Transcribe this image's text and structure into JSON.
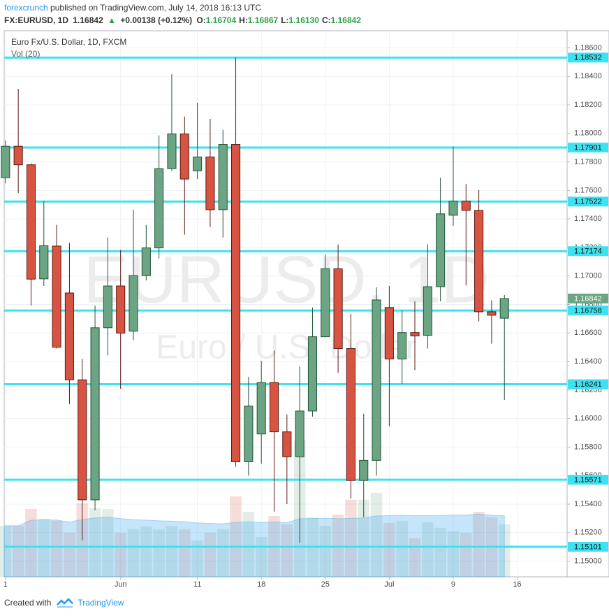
{
  "header": {
    "brand": "forexcrunch",
    "published": "published on TradingView.com, July 14, 2018 16:13 UTC",
    "symbol": "FX:EURUSD, 1D",
    "price": "1.16842",
    "change": "+0.00138 (+0.12%)",
    "ohlc": [
      {
        "label": "O:",
        "value": "1.16704"
      },
      {
        "label": "H:",
        "value": "1.16867"
      },
      {
        "label": "L:",
        "value": "1.16130"
      },
      {
        "label": "C:",
        "value": "1.16842"
      }
    ]
  },
  "footer": {
    "created": "Created with",
    "brand": "TradingView"
  },
  "chart_data": {
    "type": "candlestick",
    "title": "Euro Fx/U.S. Dollar, 1D, FXCM",
    "watermark": "EURUSD, 1D",
    "watermark_subtitle": "Euro / U.S. Dollar",
    "up_color": "#6ba583",
    "down_color": "#d75442",
    "level_color": "#3ce2f0",
    "grid": true,
    "xlim": [
      -0.1,
      43.9
    ],
    "xticks": [
      {
        "value": 0,
        "label": "1"
      },
      {
        "value": 9,
        "label": "Jun"
      },
      {
        "value": 15,
        "label": "11"
      },
      {
        "value": 20,
        "label": "18"
      },
      {
        "value": 25,
        "label": "25"
      },
      {
        "value": 30,
        "label": "Jul"
      },
      {
        "value": 35,
        "label": "9"
      },
      {
        "value": 40,
        "label": "16"
      }
    ],
    "ylim": [
      1.1489,
      1.1872
    ],
    "yticks": [
      {
        "value": 1.15,
        "label": "1.15000"
      },
      {
        "value": 1.152,
        "label": "1.15200"
      },
      {
        "value": 1.154,
        "label": "1.15400"
      },
      {
        "value": 1.156,
        "label": "1.15600"
      },
      {
        "value": 1.158,
        "label": "1.15800"
      },
      {
        "value": 1.16,
        "label": "1.16000"
      },
      {
        "value": 1.162,
        "label": "1.16200"
      },
      {
        "value": 1.164,
        "label": "1.16400"
      },
      {
        "value": 1.166,
        "label": "1.16600"
      },
      {
        "value": 1.168,
        "label": "1.16800"
      },
      {
        "value": 1.17,
        "label": "1.17000"
      },
      {
        "value": 1.172,
        "label": "1.17200"
      },
      {
        "value": 1.174,
        "label": "1.17400"
      },
      {
        "value": 1.176,
        "label": "1.17600"
      },
      {
        "value": 1.178,
        "label": "1.17800"
      },
      {
        "value": 1.18,
        "label": "1.18000"
      },
      {
        "value": 1.182,
        "label": "1.18200"
      },
      {
        "value": 1.184,
        "label": "1.18400"
      },
      {
        "value": 1.186,
        "label": "1.18600"
      }
    ],
    "open": [
      1.1769,
      1.1791,
      1.1778,
      1.1698,
      1.1721,
      1.16881,
      1.16272,
      1.1543,
      1.16637,
      1.1693,
      1.16613,
      1.17003,
      1.17197,
      1.17753,
      1.17996,
      1.17738,
      1.17835,
      1.17465,
      1.17923,
      1.15697,
      1.15892,
      1.16253,
      1.15907,
      1.15732,
      1.16053,
      1.16574,
      1.17051,
      1.16491,
      1.15566,
      1.15707,
      1.16779,
      1.16418,
      1.16603,
      1.16584,
      1.16925,
      1.17426,
      1.17524,
      1.1746,
      1.16749,
      1.16704
    ],
    "high": [
      1.1795,
      1.18313,
      1.1779,
      1.17524,
      1.17358,
      1.17232,
      1.16418,
      1.16793,
      1.1727,
      1.17183,
      1.17465,
      1.17358,
      1.17986,
      1.18415,
      1.18118,
      1.18215,
      1.18103,
      1.18025,
      1.18532,
      1.16292,
      1.16404,
      1.16477,
      1.16029,
      1.16365,
      1.16779,
      1.17149,
      1.17222,
      1.16735,
      1.16034,
      1.1692,
      1.1693,
      1.16759,
      1.16822,
      1.17222,
      1.17689,
      1.17908,
      1.17645,
      1.17602,
      1.1683,
      1.16867
    ],
    "low": [
      1.1765,
      1.17582,
      1.16793,
      1.1693,
      1.16491,
      1.16102,
      1.15147,
      1.15357,
      1.16443,
      1.16209,
      1.1655,
      1.16969,
      1.17124,
      1.17738,
      1.1729,
      1.1768,
      1.17344,
      1.1727,
      1.15663,
      1.156,
      1.15683,
      1.15347,
      1.154,
      1.15128,
      1.16014,
      1.16608,
      1.16321,
      1.15439,
      1.15308,
      1.156,
      1.15946,
      1.16243,
      1.1634,
      1.16491,
      1.16822,
      1.17353,
      1.16934,
      1.16681,
      1.16525,
      1.1613
    ],
    "close": [
      1.1791,
      1.1778,
      1.16978,
      1.17212,
      1.16501,
      1.16272,
      1.1543,
      1.16637,
      1.1693,
      1.166,
      1.17003,
      1.17197,
      1.17753,
      1.17996,
      1.1768,
      1.17835,
      1.17465,
      1.17923,
      1.15697,
      1.16087,
      1.16253,
      1.15907,
      1.15732,
      1.16053,
      1.16574,
      1.17051,
      1.16491,
      1.15566,
      1.15707,
      1.16832,
      1.16418,
      1.16603,
      1.1658,
      1.16925,
      1.17436,
      1.17524,
      1.1746,
      1.16749,
      1.16725,
      1.16842
    ],
    "last_price": 1.16842,
    "volume": {
      "name": "Vol (20)",
      "values": [
        73,
        73,
        97,
        83,
        80,
        63,
        105,
        98,
        97,
        63,
        68,
        72,
        68,
        73,
        68,
        52,
        63,
        68,
        115,
        93,
        57,
        87,
        75,
        195,
        85,
        73,
        89,
        110,
        110,
        120,
        77,
        80,
        55,
        78,
        70,
        65,
        63,
        93,
        85,
        75
      ]
    },
    "levels": [
      1.18532,
      1.17901,
      1.17522,
      1.17174,
      1.16758,
      1.16241,
      1.15571,
      1.15101
    ]
  }
}
